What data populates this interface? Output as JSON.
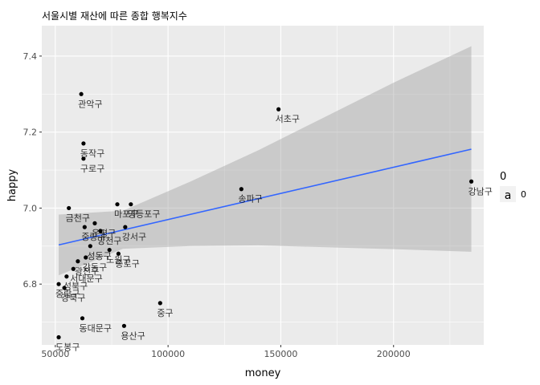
{
  "chart_data": {
    "type": "scatter",
    "title": "서울시별 재산에 따른 종합 행복지수",
    "xlabel": "money",
    "ylabel": "happy",
    "xlim": [
      44000,
      240000
    ],
    "ylim": [
      6.64,
      7.48
    ],
    "x_ticks": [
      50000,
      100000,
      150000,
      200000
    ],
    "x_tick_labels": [
      "50000",
      "100000",
      "150000",
      "200000"
    ],
    "y_ticks": [
      6.8,
      7.0,
      7.2,
      7.4
    ],
    "y_tick_labels": [
      "6.8",
      "7.0",
      "7.2",
      "7.4"
    ],
    "grid": true,
    "background": "#ebebeb",
    "point_color": "#000000",
    "label_color": "#000000",
    "label_alpha": 0.8,
    "trend": {
      "method": "linear",
      "color": "#3366ff",
      "band_color": "#999999",
      "band_alpha": 0.4,
      "x": [
        51500,
        80000,
        110000,
        140000,
        170000,
        200000,
        234500
      ],
      "fit": [
        6.903,
        6.943,
        6.985,
        7.027,
        7.069,
        7.111,
        7.155
      ],
      "lower": [
        6.823,
        6.893,
        6.9,
        6.902,
        6.897,
        6.892,
        6.885
      ],
      "upper": [
        6.983,
        6.993,
        7.07,
        7.152,
        7.241,
        7.33,
        7.426
      ]
    },
    "points": [
      {
        "label": "관악구",
        "x": 61500,
        "y": 7.3
      },
      {
        "label": "서초구",
        "x": 149000,
        "y": 7.26
      },
      {
        "label": "동작구",
        "x": 62500,
        "y": 7.17
      },
      {
        "label": "구로구",
        "x": 62500,
        "y": 7.13
      },
      {
        "label": "강남구",
        "x": 234500,
        "y": 7.07
      },
      {
        "label": "송파구",
        "x": 132500,
        "y": 7.05
      },
      {
        "label": "금천구",
        "x": 56000,
        "y": 7.0
      },
      {
        "label": "마포구",
        "x": 77500,
        "y": 7.01
      },
      {
        "label": "영등포구",
        "x": 83500,
        "y": 7.01
      },
      {
        "label": "은평구",
        "x": 67500,
        "y": 6.96
      },
      {
        "label": "중랑구",
        "x": 63000,
        "y": 6.95
      },
      {
        "label": "양천구",
        "x": 70000,
        "y": 6.94
      },
      {
        "label": "강서구",
        "x": 81000,
        "y": 6.95
      },
      {
        "label": "성동구",
        "x": 65500,
        "y": 6.9
      },
      {
        "label": "노원구",
        "x": 74000,
        "y": 6.89
      },
      {
        "label": "광진구",
        "x": 60000,
        "y": 6.86
      },
      {
        "label": "강동구",
        "x": 63500,
        "y": 6.87
      },
      {
        "label": "종로구",
        "x": 78000,
        "y": 6.88
      },
      {
        "label": "서대문구",
        "x": 58000,
        "y": 6.84
      },
      {
        "label": "성북구",
        "x": 55000,
        "y": 6.82
      },
      {
        "label": "중랑구",
        "x": 51500,
        "y": 6.8
      },
      {
        "label": "강북구",
        "x": 54000,
        "y": 6.79
      },
      {
        "label": "중구",
        "x": 96500,
        "y": 6.75
      },
      {
        "label": "동대문구",
        "x": 62000,
        "y": 6.71
      },
      {
        "label": "용산구",
        "x": 80500,
        "y": 6.69
      },
      {
        "label": "도봉구",
        "x": 51500,
        "y": 6.66
      }
    ],
    "legend": {
      "title": "0",
      "key_glyph": "a",
      "label": "0",
      "position": "right"
    }
  }
}
